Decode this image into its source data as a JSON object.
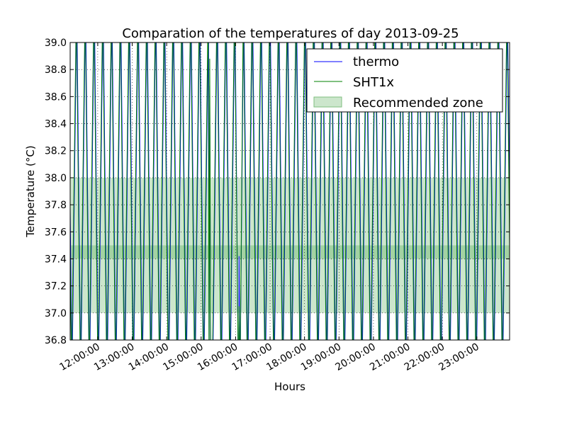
{
  "chart_data": {
    "type": "line",
    "title": "Comparation of the temperatures of day 2013-09-25",
    "xlabel": "Hours",
    "ylabel": "Temperature (°C)",
    "xlim": [
      11.2,
      23.95
    ],
    "ylim": [
      36.8,
      39.0
    ],
    "x_ticks": [
      {
        "x": 12,
        "label": "12:00:00"
      },
      {
        "x": 13,
        "label": "13:00:00"
      },
      {
        "x": 14,
        "label": "14:00:00"
      },
      {
        "x": 15,
        "label": "15:00:00"
      },
      {
        "x": 16,
        "label": "16:00:00"
      },
      {
        "x": 17,
        "label": "17:00:00"
      },
      {
        "x": 18,
        "label": "18:00:00"
      },
      {
        "x": 19,
        "label": "19:00:00"
      },
      {
        "x": 20,
        "label": "20:00:00"
      },
      {
        "x": 21,
        "label": "21:00:00"
      },
      {
        "x": 22,
        "label": "22:00:00"
      },
      {
        "x": 23,
        "label": "23:00:00"
      }
    ],
    "y_ticks": [
      "36.8",
      "37.0",
      "37.2",
      "37.4",
      "37.6",
      "37.8",
      "38.0",
      "38.2",
      "38.4",
      "38.6",
      "38.8",
      "39.0"
    ],
    "grid": true,
    "legend_position": "top-right",
    "recommended_zones": [
      {
        "name": "Recommended zone",
        "y0": 37.0,
        "y1": 38.0,
        "color": "#008000",
        "alpha": 0.2
      },
      {
        "y0": 37.4,
        "y1": 37.5,
        "color": "#008000",
        "alpha": 0.2
      }
    ],
    "series": [
      {
        "name": "thermo",
        "color": "#0000ff",
        "oscillation_period_hours": 0.255,
        "low": 36.5,
        "high": 39.3,
        "spikes": [
          {
            "x": 15.25,
            "y": 38.68
          },
          {
            "x": 16.1,
            "y": 37.42
          }
        ]
      },
      {
        "name": "SHT1x",
        "color": "#008000",
        "oscillation_period_hours": 0.255,
        "low": 36.5,
        "high": 39.3,
        "spikes": [
          {
            "x": 15.25,
            "y": 38.88
          },
          {
            "x": 16.1,
            "y": 37.05
          }
        ]
      }
    ]
  }
}
